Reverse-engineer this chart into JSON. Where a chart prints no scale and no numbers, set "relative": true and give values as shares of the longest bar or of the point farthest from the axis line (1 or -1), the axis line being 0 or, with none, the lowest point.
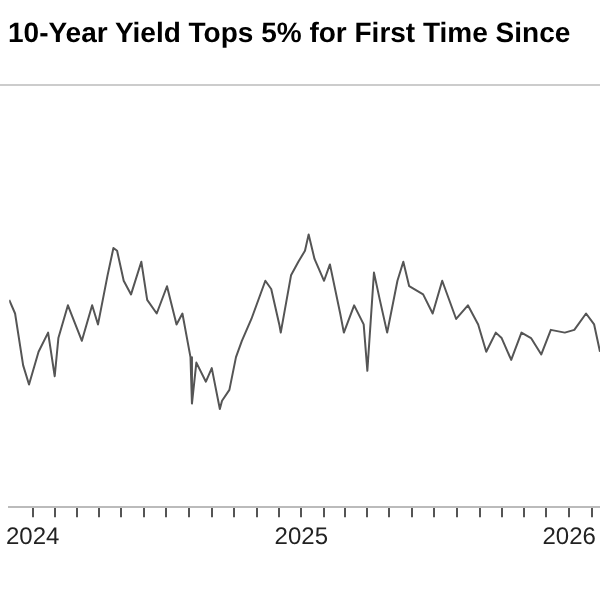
{
  "chart_data": {
    "type": "line",
    "title": "10-Year Yield Tops 5% for First Time Since",
    "relative": true,
    "grid": false,
    "legend": false,
    "marker": "none",
    "line_style": "solid",
    "tick_labels": "x",
    "xlim": [
      "2023-11-30",
      "2026-02-12"
    ],
    "xticks": [
      "2024",
      {
        "value": "2024-02",
        "label": null
      },
      {
        "value": "2024-03",
        "label": null
      },
      {
        "value": "2024-04",
        "label": null
      },
      {
        "value": "2024-05",
        "label": null
      },
      {
        "value": "2024-06",
        "label": null
      },
      {
        "value": "2024-07",
        "label": null
      },
      {
        "value": "2024-08",
        "label": null
      },
      {
        "value": "2024-09",
        "label": null
      },
      {
        "value": "2024-10",
        "label": null
      },
      {
        "value": "2024-11",
        "label": null
      },
      {
        "value": "2024-12",
        "label": null
      },
      "2025",
      {
        "value": "2025-02",
        "label": null
      },
      {
        "value": "2025-03",
        "label": null
      },
      {
        "value": "2025-04",
        "label": null
      },
      {
        "value": "2025-05",
        "label": null
      },
      {
        "value": "2025-06",
        "label": null
      },
      {
        "value": "2025-07",
        "label": null
      },
      {
        "value": "2025-08",
        "label": null
      },
      {
        "value": "2025-09",
        "label": null
      },
      {
        "value": "2025-10",
        "label": null
      },
      {
        "value": "2025-11",
        "label": null
      },
      {
        "value": "2025-12",
        "label": null
      },
      "2026",
      {
        "value": "2026-02",
        "label": null
      }
    ],
    "x": [
      "2023-11-30",
      "2023-12-08",
      "2023-12-19",
      "2023-12-27",
      "2024-01-09",
      "2024-01-22",
      "2024-01-31",
      "2024-02-05",
      "2024-02-18",
      "2024-03-08",
      "2024-03-22",
      "2024-03-30",
      "2024-04-12",
      "2024-04-20",
      "2024-04-25",
      "2024-05-04",
      "2024-05-14",
      "2024-05-28",
      "2024-06-05",
      "2024-06-18",
      "2024-07-02",
      "2024-07-15",
      "2024-07-23",
      "2024-08-03",
      "2024-08-05",
      "2024-08-11",
      "2024-08-24",
      "2024-09-01",
      "2024-09-12",
      "2024-09-15",
      "2024-09-25",
      "2024-10-04",
      "2024-10-12",
      "2024-10-25",
      "2024-11-13",
      "2024-11-21",
      "2024-12-02",
      "2024-12-04",
      "2024-12-18",
      "2024-12-28",
      "2025-01-06",
      "2025-01-11",
      "2025-01-19",
      "2025-02-01",
      "2025-02-09",
      "2025-02-23",
      "2025-02-28",
      "2025-03-14",
      "2025-03-27",
      "2025-04-01",
      "2025-04-10",
      "2025-04-18",
      "2025-04-28",
      "2025-05-12",
      "2025-05-20",
      "2025-05-28",
      "2025-06-16",
      "2025-06-29",
      "2025-07-12",
      "2025-07-31",
      "2025-08-16",
      "2025-08-30",
      "2025-09-10",
      "2025-09-23",
      "2025-10-01",
      "2025-10-14",
      "2025-10-28",
      "2025-11-10",
      "2025-11-24",
      "2025-12-07",
      "2025-12-26",
      "2026-01-08",
      "2026-01-24",
      "2026-02-04",
      "2026-02-12"
    ],
    "series": [
      {
        "color": "#555555",
        "values": [
          0.76,
          0.71,
          0.52,
          0.45,
          0.57,
          0.64,
          0.48,
          0.62,
          0.74,
          0.61,
          0.74,
          0.67,
          0.85,
          0.95,
          0.94,
          0.83,
          0.78,
          0.9,
          0.76,
          0.71,
          0.81,
          0.67,
          0.71,
          0.55,
          0.38,
          0.53,
          0.46,
          0.51,
          0.36,
          0.39,
          0.43,
          0.55,
          0.61,
          0.69,
          0.83,
          0.8,
          0.67,
          0.64,
          0.85,
          0.9,
          0.94,
          1,
          0.91,
          0.83,
          0.89,
          0.71,
          0.64,
          0.74,
          0.67,
          0.5,
          0.86,
          0.76,
          0.64,
          0.83,
          0.9,
          0.81,
          0.78,
          0.71,
          0.83,
          0.69,
          0.74,
          0.67,
          0.57,
          0.64,
          0.62,
          0.54,
          0.64,
          0.62,
          0.56,
          0.65,
          0.64,
          0.65,
          0.71,
          0.67,
          0.57
        ]
      }
    ]
  }
}
